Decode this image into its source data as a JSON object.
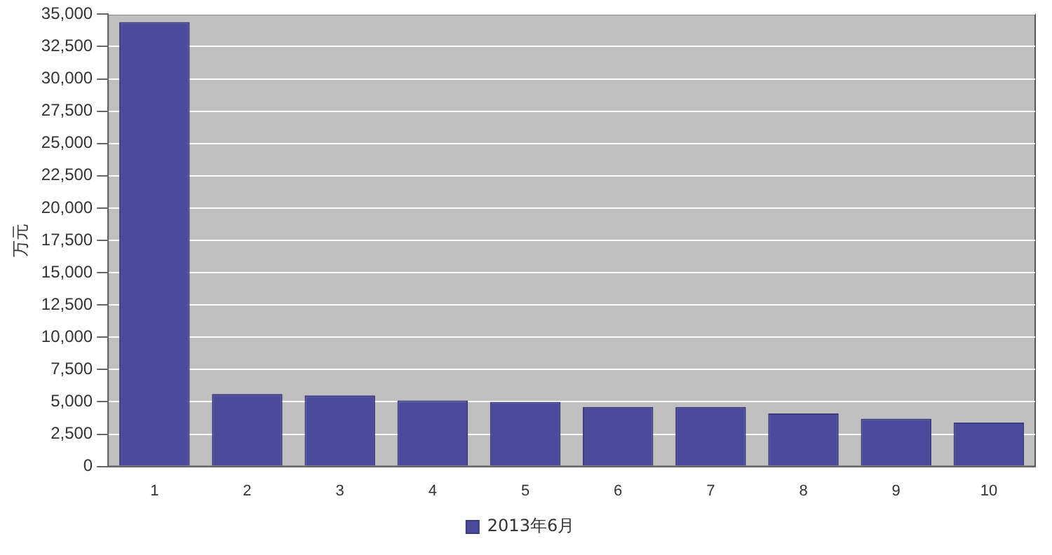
{
  "chart_data": {
    "type": "bar",
    "ylabel": "万元",
    "categories": [
      "1",
      "2",
      "3",
      "4",
      "5",
      "6",
      "7",
      "8",
      "9",
      "10"
    ],
    "series": [
      {
        "name": "2013年6月",
        "color": "#4b4b9b",
        "values": [
          34400,
          5600,
          5500,
          5100,
          5000,
          4600,
          4600,
          4100,
          3700,
          3400
        ]
      }
    ],
    "ylim": [
      0,
      35000
    ],
    "yticks": [
      {
        "value": 0,
        "label": "0"
      },
      {
        "value": 2500,
        "label": "2,500"
      },
      {
        "value": 5000,
        "label": "5,000"
      },
      {
        "value": 7500,
        "label": "7,500"
      },
      {
        "value": 10000,
        "label": "10,000"
      },
      {
        "value": 12500,
        "label": "12,500"
      },
      {
        "value": 15000,
        "label": "15,000"
      },
      {
        "value": 17500,
        "label": "17,500"
      },
      {
        "value": 20000,
        "label": "20,000"
      },
      {
        "value": 22500,
        "label": "22,500"
      },
      {
        "value": 25000,
        "label": "25,000"
      },
      {
        "value": 27500,
        "label": "27,500"
      },
      {
        "value": 30000,
        "label": "30,000"
      },
      {
        "value": 32500,
        "label": "32,500"
      },
      {
        "value": 35000,
        "label": "35,000"
      }
    ],
    "grid": "y",
    "legend": "bottom"
  }
}
